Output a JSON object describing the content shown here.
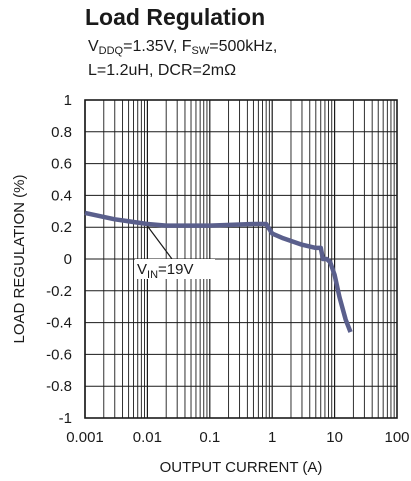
{
  "chart_data": {
    "type": "line",
    "title": "Load Regulation",
    "subtitle": {
      "line1": {
        "vddq_prefix": "V",
        "vddq_sub": "DDQ",
        "vddq_value": "=1.35V, ",
        "fsw_prefix": "F",
        "fsw_sub": "SW",
        "fsw_value": "=500kHz,"
      },
      "line2": "L=1.2uH, DCR=2mΩ"
    },
    "xlabel": "OUTPUT CURRENT (A)",
    "ylabel": "LOAD REGULATION (%)",
    "x_scale": "log",
    "xlim": [
      0.001,
      100
    ],
    "ylim": [
      -1,
      1
    ],
    "x_ticks": [
      "0.001",
      "0.01",
      "0.1",
      "1",
      "10",
      "100"
    ],
    "y_ticks": [
      "1",
      "0.8",
      "0.6",
      "0.4",
      "0.2",
      "0",
      "-0.2",
      "-0.4",
      "-0.6",
      "-0.8",
      "-1"
    ],
    "grid": true,
    "line_color": "#5a5f8c",
    "series": [
      {
        "x": [
          0.001,
          0.003,
          0.01,
          0.02,
          0.1,
          0.5,
          0.8,
          1.0,
          1.5,
          3.0,
          5.0,
          6.0,
          6.5,
          7.5,
          8.5,
          10.0,
          12.0,
          15.0,
          18.0
        ],
        "y": [
          0.29,
          0.25,
          0.22,
          0.21,
          0.21,
          0.22,
          0.22,
          0.16,
          0.13,
          0.09,
          0.07,
          0.07,
          0.0,
          0.0,
          -0.02,
          -0.1,
          -0.24,
          -0.38,
          -0.46
        ]
      }
    ],
    "annotations": [
      {
        "prefix": "V",
        "sub": "IN",
        "suffix": "=19V",
        "x": 0.05,
        "y": -0.08,
        "points_to": [
          0.01,
          0.22
        ]
      }
    ]
  }
}
